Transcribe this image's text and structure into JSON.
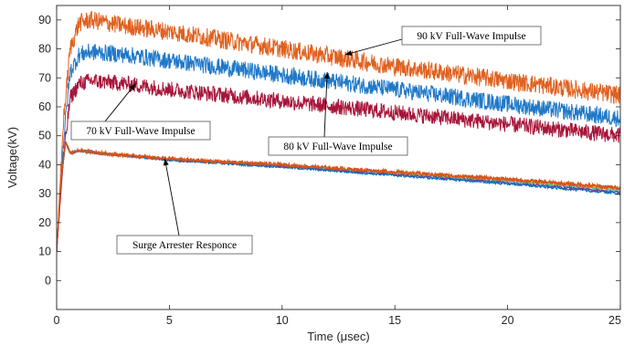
{
  "chart_data": {
    "type": "line",
    "xlabel": "Time (μsec)",
    "ylabel": "Voltage(kV)",
    "xlim": [
      0,
      25
    ],
    "ylim": [
      -10,
      95
    ],
    "xticks": [
      0,
      5,
      10,
      15,
      20,
      25
    ],
    "yticks": [
      0,
      10,
      20,
      30,
      40,
      50,
      60,
      70,
      80,
      90
    ],
    "xtick_labels": [
      "0",
      "5",
      "10",
      "15",
      "20",
      "25"
    ],
    "ytick_labels": [
      "0",
      "10",
      "20",
      "30",
      "40",
      "50",
      "60",
      "70",
      "80",
      "90"
    ],
    "grid": false,
    "series": [
      {
        "name": "90 kV Full-Wave Impulse",
        "color": "#E0611F",
        "points": [
          [
            0,
            10
          ],
          [
            0.3,
            55
          ],
          [
            0.6,
            80
          ],
          [
            1.0,
            89
          ],
          [
            1.5,
            90
          ],
          [
            3,
            88
          ],
          [
            5,
            86
          ],
          [
            10,
            80
          ],
          [
            15,
            74
          ],
          [
            20,
            69
          ],
          [
            25,
            64
          ]
        ]
      },
      {
        "name": "80 kV Full-Wave Impulse",
        "color": "#1F78C8",
        "points": [
          [
            0,
            10
          ],
          [
            0.3,
            48
          ],
          [
            0.6,
            72
          ],
          [
            1.0,
            78
          ],
          [
            1.5,
            79
          ],
          [
            3,
            78
          ],
          [
            5,
            76
          ],
          [
            10,
            71
          ],
          [
            15,
            66
          ],
          [
            20,
            61
          ],
          [
            25,
            56
          ]
        ]
      },
      {
        "name": "70 kV Full-Wave Impulse",
        "color": "#A8153A",
        "points": [
          [
            0,
            10
          ],
          [
            0.3,
            42
          ],
          [
            0.6,
            63
          ],
          [
            1.0,
            68
          ],
          [
            1.5,
            69
          ],
          [
            3,
            68
          ],
          [
            5,
            66
          ],
          [
            10,
            62
          ],
          [
            15,
            58
          ],
          [
            20,
            54
          ],
          [
            25,
            50
          ]
        ]
      },
      {
        "name": "Surge Arrester Responce",
        "color": "#D95319",
        "points": [
          [
            0,
            10
          ],
          [
            0.2,
            35
          ],
          [
            0.4,
            48
          ],
          [
            0.6,
            44
          ],
          [
            1.0,
            45
          ],
          [
            2,
            44
          ],
          [
            5,
            42
          ],
          [
            10,
            40
          ],
          [
            15,
            37.5
          ],
          [
            20,
            35
          ],
          [
            25,
            32
          ]
        ]
      }
    ],
    "arrester_overlay_colors": [
      "#EDB120",
      "#77AC30",
      "#4DBEEE",
      "#7E2F8E",
      "#0072BD"
    ],
    "annotations": [
      {
        "text": "90 kV Full-Wave Impulse",
        "arrow_to": [
          12.8,
          78
        ]
      },
      {
        "text": "80 kV Full-Wave Impulse",
        "arrow_to": [
          12.0,
          72
        ]
      },
      {
        "text": "70 kV Full-Wave Impulse",
        "arrow_to": [
          3.5,
          68
        ]
      },
      {
        "text": "Surge Arrester Responce",
        "arrow_to": [
          4.8,
          42
        ]
      }
    ]
  }
}
